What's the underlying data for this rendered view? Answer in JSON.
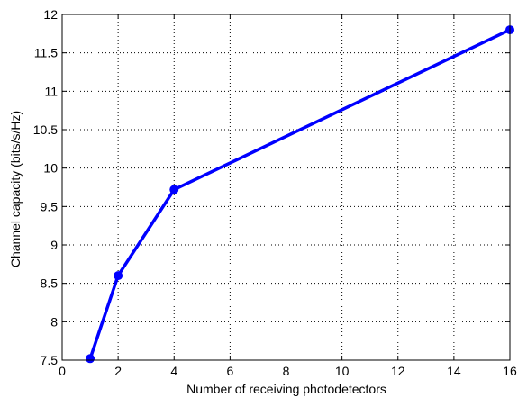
{
  "chart_data": {
    "type": "line",
    "xlabel": "Number of receiving photodetectors",
    "ylabel": "Channel capacity (bits/s/Hz)",
    "xlim": [
      0,
      16
    ],
    "ylim": [
      7.5,
      12
    ],
    "xticks": [
      0,
      2,
      4,
      6,
      8,
      10,
      12,
      14,
      16
    ],
    "yticks": [
      7.5,
      8,
      8.5,
      9,
      9.5,
      10,
      10.5,
      11,
      11.5,
      12
    ],
    "xtick_labels": [
      "0",
      "2",
      "4",
      "6",
      "8",
      "10",
      "12",
      "14",
      "16"
    ],
    "ytick_labels": [
      "7.5",
      "8",
      "8.5",
      "9",
      "9.5",
      "10",
      "10.5",
      "11",
      "11.5",
      "12"
    ],
    "grid": true,
    "grid_style": "dotted",
    "series": [
      {
        "color": "#0000ff",
        "marker": "circle",
        "x": [
          1,
          2,
          4,
          16
        ],
        "y": [
          7.52,
          8.6,
          9.72,
          11.8
        ]
      }
    ]
  }
}
